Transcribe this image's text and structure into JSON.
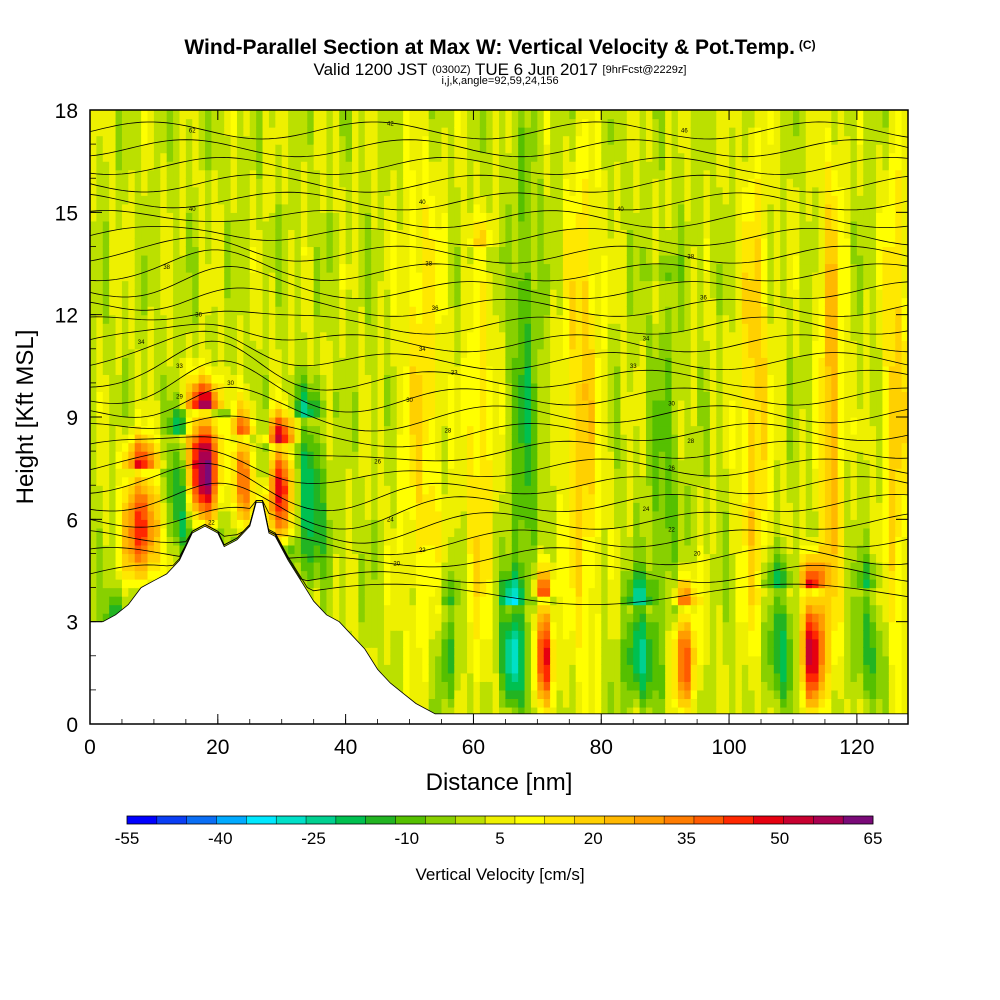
{
  "header": {
    "title": "Wind-Parallel Section at Max W: Vertical Velocity & Pot.Temp.",
    "title_mark": "(C)",
    "valid_prefix": "Valid 1200 JST",
    "valid_utc": "(0300Z)",
    "valid_date": "TUE 6 Jun 2017",
    "forecast": "[9hrFcst@2229z]",
    "indices": "i,j,k,angle=92,59,24,156"
  },
  "chart_data": {
    "type": "heatmap",
    "title": "Wind-Parallel Section at Max W: Vertical Velocity & Pot.Temp.",
    "xlabel": "Distance [nm]",
    "ylabel": "Height [Kft MSL]",
    "xlim": [
      0,
      128
    ],
    "ylim": [
      0,
      18
    ],
    "x_ticks": [
      "0",
      "20",
      "40",
      "60",
      "80",
      "100",
      "120"
    ],
    "x_tick_values": [
      0,
      20,
      40,
      60,
      80,
      100,
      120
    ],
    "y_ticks": [
      "0",
      "3",
      "6",
      "9",
      "12",
      "15",
      "18"
    ],
    "y_tick_values": [
      0,
      3,
      6,
      9,
      12,
      15,
      18
    ],
    "colorbar": {
      "title": "Vertical Velocity [cm/s]",
      "labels": [
        "-55",
        "-40",
        "-25",
        "-10",
        "5",
        "20",
        "35",
        "50",
        "65"
      ],
      "min": -55,
      "max": 65,
      "step": 5,
      "colors": [
        "#0000ff",
        "#0a3ef5",
        "#0a6ef5",
        "#00aaff",
        "#00e8ff",
        "#00e0c8",
        "#00d090",
        "#00c050",
        "#22b422",
        "#55c000",
        "#88d000",
        "#bbe000",
        "#eef000",
        "#ffff00",
        "#ffe800",
        "#ffd000",
        "#ffb800",
        "#ff9c00",
        "#ff7c00",
        "#ff5a00",
        "#ff2800",
        "#e60010",
        "#c80030",
        "#aa0050",
        "#7a0a78"
      ]
    },
    "terrain_profile": [
      [
        0,
        3.0
      ],
      [
        2,
        3.0
      ],
      [
        4,
        3.2
      ],
      [
        6,
        3.5
      ],
      [
        8,
        4.0
      ],
      [
        10,
        4.2
      ],
      [
        12,
        4.4
      ],
      [
        14,
        4.8
      ],
      [
        15,
        5.2
      ],
      [
        16,
        5.6
      ],
      [
        18,
        5.8
      ],
      [
        20,
        5.6
      ],
      [
        21,
        5.2
      ],
      [
        23,
        5.4
      ],
      [
        25,
        5.8
      ],
      [
        26,
        6.5
      ],
      [
        27,
        6.5
      ],
      [
        28,
        5.6
      ],
      [
        29,
        5.5
      ],
      [
        31,
        4.8
      ],
      [
        33,
        4.2
      ],
      [
        35,
        3.6
      ],
      [
        37,
        3.2
      ],
      [
        39,
        3.0
      ],
      [
        41,
        2.6
      ],
      [
        43,
        2.2
      ],
      [
        45,
        1.6
      ],
      [
        47,
        1.2
      ],
      [
        49,
        0.9
      ],
      [
        51,
        0.6
      ],
      [
        53,
        0.4
      ],
      [
        54,
        0.3
      ],
      [
        128,
        0.3
      ]
    ],
    "updraft_columns": [
      [
        8,
        7.5,
        6,
        45
      ],
      [
        18,
        9.2,
        6,
        65
      ],
      [
        24,
        8.5,
        4,
        35
      ],
      [
        30,
        8.3,
        5,
        50
      ],
      [
        52,
        18,
        7,
        15
      ],
      [
        61,
        14,
        5,
        15
      ],
      [
        71,
        3.8,
        3,
        50
      ],
      [
        77,
        18,
        6,
        20
      ],
      [
        93,
        3.5,
        4,
        40
      ],
      [
        104,
        18,
        5,
        20
      ],
      [
        113,
        4,
        4,
        55
      ],
      [
        116,
        18,
        4,
        25
      ],
      [
        126,
        18,
        4,
        20
      ]
    ],
    "downdraft_columns": [
      [
        4,
        3,
        4,
        -20
      ],
      [
        14,
        8.5,
        4,
        -25
      ],
      [
        21,
        9,
        3,
        -15
      ],
      [
        27,
        8.5,
        2,
        -15
      ],
      [
        34,
        9,
        6,
        -25
      ],
      [
        56,
        3.5,
        4,
        -15
      ],
      [
        66,
        3.5,
        4,
        -30
      ],
      [
        68,
        18,
        5,
        -15
      ],
      [
        86,
        3.5,
        5,
        -25
      ],
      [
        90,
        13,
        6,
        -10
      ],
      [
        108,
        4,
        6,
        -20
      ],
      [
        122,
        4,
        5,
        -15
      ]
    ],
    "contour_labels": [
      {
        "x": 16,
        "y": 17.4,
        "t": "62"
      },
      {
        "x": 47,
        "y": 17.6,
        "t": "42"
      },
      {
        "x": 93,
        "y": 17.4,
        "t": "46"
      },
      {
        "x": 16,
        "y": 15.1,
        "t": "40"
      },
      {
        "x": 52,
        "y": 15.3,
        "t": "40"
      },
      {
        "x": 83,
        "y": 15.1,
        "t": "40"
      },
      {
        "x": 12,
        "y": 13.4,
        "t": "38"
      },
      {
        "x": 53,
        "y": 13.5,
        "t": "38"
      },
      {
        "x": 94,
        "y": 13.7,
        "t": "38"
      },
      {
        "x": 17,
        "y": 12.0,
        "t": "36"
      },
      {
        "x": 54,
        "y": 12.2,
        "t": "36"
      },
      {
        "x": 96,
        "y": 12.5,
        "t": "36"
      },
      {
        "x": 8,
        "y": 11.2,
        "t": "34"
      },
      {
        "x": 52,
        "y": 11.0,
        "t": "34"
      },
      {
        "x": 87,
        "y": 11.3,
        "t": "34"
      },
      {
        "x": 14,
        "y": 10.5,
        "t": "33"
      },
      {
        "x": 57,
        "y": 10.3,
        "t": "33"
      },
      {
        "x": 85,
        "y": 10.5,
        "t": "33"
      },
      {
        "x": 22,
        "y": 10.0,
        "t": "30"
      },
      {
        "x": 50,
        "y": 9.5,
        "t": "30"
      },
      {
        "x": 91,
        "y": 9.4,
        "t": "30"
      },
      {
        "x": 14,
        "y": 9.6,
        "t": "29"
      },
      {
        "x": 56,
        "y": 8.6,
        "t": "28"
      },
      {
        "x": 94,
        "y": 8.3,
        "t": "28"
      },
      {
        "x": 45,
        "y": 7.7,
        "t": "26"
      },
      {
        "x": 91,
        "y": 7.5,
        "t": "26"
      },
      {
        "x": 47,
        "y": 6.0,
        "t": "24"
      },
      {
        "x": 87,
        "y": 6.3,
        "t": "24"
      },
      {
        "x": 19,
        "y": 5.9,
        "t": "22"
      },
      {
        "x": 52,
        "y": 5.1,
        "t": "22"
      },
      {
        "x": 91,
        "y": 5.7,
        "t": "22"
      },
      {
        "x": 48,
        "y": 4.7,
        "t": "20"
      },
      {
        "x": 95,
        "y": 5.0,
        "t": "20"
      }
    ]
  }
}
